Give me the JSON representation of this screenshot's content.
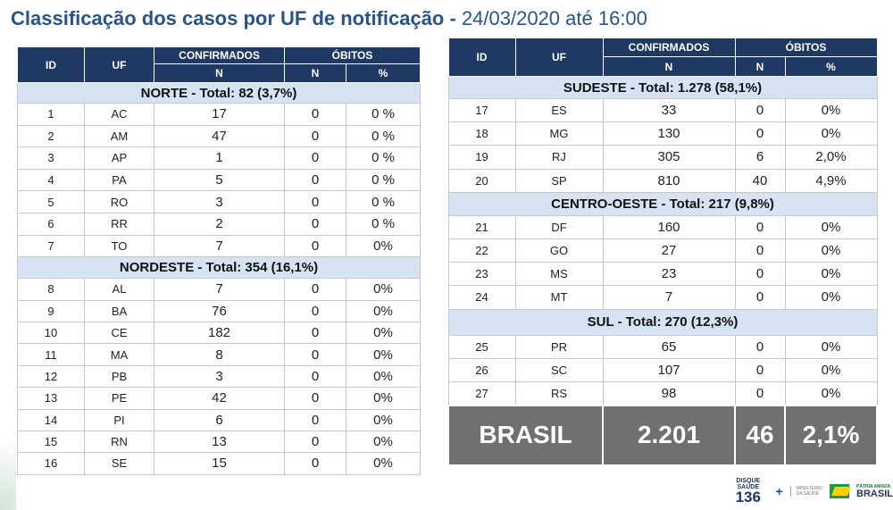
{
  "title": {
    "main": "Classificação dos casos por UF de notificação",
    "sep": " - ",
    "date": "24/03/2020 até 16:00"
  },
  "headers": {
    "id": "ID",
    "uf": "UF",
    "confirmados": "CONFIRMADOS",
    "obitos": "ÓBITOS",
    "n": "N",
    "pct": "%"
  },
  "left_table": [
    {
      "region": "NORTE - Total: 82 (3,7%)",
      "rows": [
        [
          "1",
          "AC",
          "17",
          "0",
          "0 %"
        ],
        [
          "2",
          "AM",
          "47",
          "0",
          "0 %"
        ],
        [
          "3",
          "AP",
          "1",
          "0",
          "0 %"
        ],
        [
          "4",
          "PA",
          "5",
          "0",
          "0 %"
        ],
        [
          "5",
          "RO",
          "3",
          "0",
          "0 %"
        ],
        [
          "6",
          "RR",
          "2",
          "0",
          "0 %"
        ],
        [
          "7",
          "TO",
          "7",
          "0",
          "0%"
        ]
      ]
    },
    {
      "region": "NORDESTE -  Total: 354 (16,1%)",
      "rows": [
        [
          "8",
          "AL",
          "7",
          "0",
          "0%"
        ],
        [
          "9",
          "BA",
          "76",
          "0",
          "0%"
        ],
        [
          "10",
          "CE",
          "182",
          "0",
          "0%"
        ],
        [
          "11",
          "MA",
          "8",
          "0",
          "0%"
        ],
        [
          "12",
          "PB",
          "3",
          "0",
          "0%"
        ],
        [
          "13",
          "PE",
          "42",
          "0",
          "0%"
        ],
        [
          "14",
          "PI",
          "6",
          "0",
          "0%"
        ],
        [
          "15",
          "RN",
          "13",
          "0",
          "0%"
        ],
        [
          "16",
          "SE",
          "15",
          "0",
          "0%"
        ]
      ]
    }
  ],
  "right_table": [
    {
      "region": "SUDESTE - Total:  1.278 (58,1%)",
      "rows": [
        [
          "17",
          "ES",
          "33",
          "0",
          "0%"
        ],
        [
          "18",
          "MG",
          "130",
          "0",
          "0%"
        ],
        [
          "19",
          "RJ",
          "305",
          "6",
          "2,0%"
        ],
        [
          "20",
          "SP",
          "810",
          "40",
          "4,9%"
        ]
      ]
    },
    {
      "region": "CENTRO-OESTE - Total: 217 (9,8%)",
      "rows": [
        [
          "21",
          "DF",
          "160",
          "0",
          "0%"
        ],
        [
          "22",
          "GO",
          "27",
          "0",
          "0%"
        ],
        [
          "23",
          "MS",
          "23",
          "0",
          "0%"
        ],
        [
          "24",
          "MT",
          "7",
          "0",
          "0%"
        ]
      ]
    },
    {
      "region": "SUL - Total:  270 (12,3%)",
      "rows": [
        [
          "25",
          "PR",
          "65",
          "0",
          "0%"
        ],
        [
          "26",
          "SC",
          "107",
          "0",
          "0%"
        ],
        [
          "27",
          "RS",
          "98",
          "0",
          "0%"
        ]
      ]
    }
  ],
  "brasil": {
    "label": "BRASIL",
    "confirmados": "2.201",
    "obitos": "46",
    "pct": "2,1%"
  },
  "footer": {
    "disque": "DISQUE SAÚDE",
    "disque_number": "136",
    "ministerio": "MINISTÉRIO DA SAÚDE",
    "patria": "PÁTRIA AMADA",
    "brasil": "BRASIL"
  },
  "colors": {
    "header": "#1f3864",
    "region_band": "#d6e3f2",
    "brasil_row": "#707070",
    "title": "#2b5486"
  }
}
